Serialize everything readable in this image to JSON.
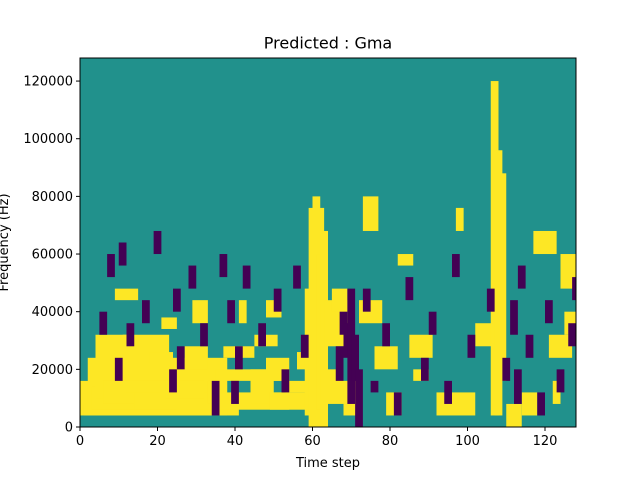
{
  "chart_data": {
    "type": "heatmap",
    "title": "Predicted : Gma",
    "xlabel": "Time step",
    "ylabel": "Frequency (Hz)",
    "xlim": [
      0,
      128
    ],
    "ylim": [
      0,
      128000
    ],
    "xticks": [
      0,
      20,
      40,
      60,
      80,
      100,
      120
    ],
    "yticks": [
      0,
      20000,
      40000,
      60000,
      80000,
      100000,
      120000
    ],
    "ytick_labels": [
      "0",
      "20000",
      "40000",
      "60000",
      "80000",
      "100000",
      "120000"
    ],
    "grid": false,
    "legend": "none",
    "colors": {
      "background": "#21918c",
      "high": "#fde725",
      "low": "#440154"
    },
    "x_bins": 128,
    "y_bins": 64,
    "bin_width_hz": 2000,
    "values_legend": {
      "0": "low (purple)",
      "1": "mid (teal)",
      "2": "high (yellow)"
    },
    "yellow_segments": [
      [
        0,
        2,
        8,
        37
      ],
      [
        1,
        2,
        4,
        40
      ],
      [
        2,
        2,
        12,
        36
      ],
      [
        3,
        3,
        7,
        22
      ],
      [
        4,
        5,
        16,
        19
      ],
      [
        6,
        4,
        8,
        20
      ],
      [
        11,
        14,
        16,
        2
      ],
      [
        14,
        3,
        6,
        40
      ],
      [
        9,
        22,
        24,
        6
      ],
      [
        12,
        6,
        6,
        12
      ],
      [
        18,
        11,
        13,
        6
      ],
      [
        21,
        17,
        19,
        4
      ],
      [
        22,
        5,
        8,
        10
      ],
      [
        27,
        10,
        14,
        6
      ],
      [
        29,
        18,
        22,
        4
      ],
      [
        33,
        4,
        8,
        2
      ],
      [
        35,
        8,
        10,
        18
      ],
      [
        37,
        12,
        14,
        8
      ],
      [
        41,
        18,
        22,
        2
      ],
      [
        44,
        4,
        10,
        6
      ],
      [
        45,
        14,
        16,
        6
      ],
      [
        48,
        8,
        12,
        6
      ],
      [
        48,
        19,
        22,
        4
      ],
      [
        49,
        3,
        6,
        10
      ],
      [
        53,
        6,
        8,
        10
      ],
      [
        56,
        10,
        13,
        6
      ],
      [
        58,
        2,
        24,
        6
      ],
      [
        59,
        0,
        38,
        4
      ],
      [
        60,
        0,
        40,
        2
      ],
      [
        61,
        3,
        30,
        3
      ],
      [
        62,
        0,
        34,
        2
      ],
      [
        63,
        14,
        22,
        6
      ],
      [
        64,
        4,
        10,
        4
      ],
      [
        65,
        20,
        24,
        4
      ],
      [
        68,
        2,
        8,
        4
      ],
      [
        72,
        18,
        22,
        6
      ],
      [
        73,
        34,
        40,
        4
      ],
      [
        76,
        10,
        14,
        6
      ],
      [
        79,
        2,
        6,
        4
      ],
      [
        82,
        28,
        30,
        4
      ],
      [
        85,
        12,
        16,
        6
      ],
      [
        86,
        8,
        10,
        4
      ],
      [
        92,
        2,
        6,
        10
      ],
      [
        97,
        34,
        38,
        2
      ],
      [
        102,
        14,
        18,
        6
      ],
      [
        106,
        2,
        60,
        2
      ],
      [
        107,
        2,
        48,
        2
      ],
      [
        108,
        8,
        44,
        2
      ],
      [
        110,
        0,
        4,
        4
      ],
      [
        114,
        2,
        6,
        4
      ],
      [
        117,
        30,
        34,
        6
      ],
      [
        121,
        12,
        16,
        6
      ],
      [
        122,
        4,
        8,
        2
      ],
      [
        124,
        24,
        30,
        4
      ],
      [
        125,
        16,
        20,
        4
      ]
    ],
    "purple_segments": [
      [
        5,
        16,
        20,
        2
      ],
      [
        7,
        26,
        30,
        2
      ],
      [
        9,
        8,
        12,
        2
      ],
      [
        10,
        28,
        32,
        2
      ],
      [
        12,
        14,
        18,
        2
      ],
      [
        16,
        18,
        22,
        2
      ],
      [
        19,
        30,
        34,
        2
      ],
      [
        23,
        6,
        10,
        2
      ],
      [
        24,
        20,
        24,
        2
      ],
      [
        25,
        10,
        14,
        2
      ],
      [
        28,
        24,
        28,
        2
      ],
      [
        31,
        14,
        18,
        2
      ],
      [
        34,
        2,
        8,
        2
      ],
      [
        36,
        26,
        30,
        2
      ],
      [
        38,
        18,
        22,
        2
      ],
      [
        39,
        4,
        8,
        2
      ],
      [
        40,
        10,
        14,
        2
      ],
      [
        42,
        24,
        28,
        2
      ],
      [
        46,
        14,
        18,
        2
      ],
      [
        50,
        20,
        24,
        2
      ],
      [
        52,
        6,
        10,
        2
      ],
      [
        55,
        24,
        28,
        2
      ],
      [
        57,
        12,
        16,
        2
      ],
      [
        66,
        8,
        14,
        2
      ],
      [
        67,
        16,
        20,
        2
      ],
      [
        68,
        12,
        18,
        2
      ],
      [
        69,
        4,
        24,
        2
      ],
      [
        70,
        8,
        16,
        2
      ],
      [
        71,
        0,
        10,
        2
      ],
      [
        73,
        20,
        24,
        2
      ],
      [
        75,
        6,
        8,
        2
      ],
      [
        78,
        14,
        18,
        2
      ],
      [
        81,
        2,
        6,
        2
      ],
      [
        84,
        22,
        26,
        2
      ],
      [
        88,
        8,
        12,
        2
      ],
      [
        90,
        16,
        20,
        2
      ],
      [
        94,
        4,
        8,
        2
      ],
      [
        96,
        26,
        30,
        2
      ],
      [
        100,
        12,
        16,
        2
      ],
      [
        105,
        20,
        24,
        2
      ],
      [
        109,
        8,
        12,
        2
      ],
      [
        111,
        16,
        22,
        2
      ],
      [
        112,
        4,
        10,
        2
      ],
      [
        113,
        24,
        28,
        2
      ],
      [
        115,
        12,
        16,
        2
      ],
      [
        118,
        2,
        6,
        2
      ],
      [
        120,
        18,
        22,
        2
      ],
      [
        123,
        6,
        10,
        2
      ],
      [
        126,
        14,
        18,
        2
      ],
      [
        127,
        22,
        26,
        2
      ]
    ]
  }
}
